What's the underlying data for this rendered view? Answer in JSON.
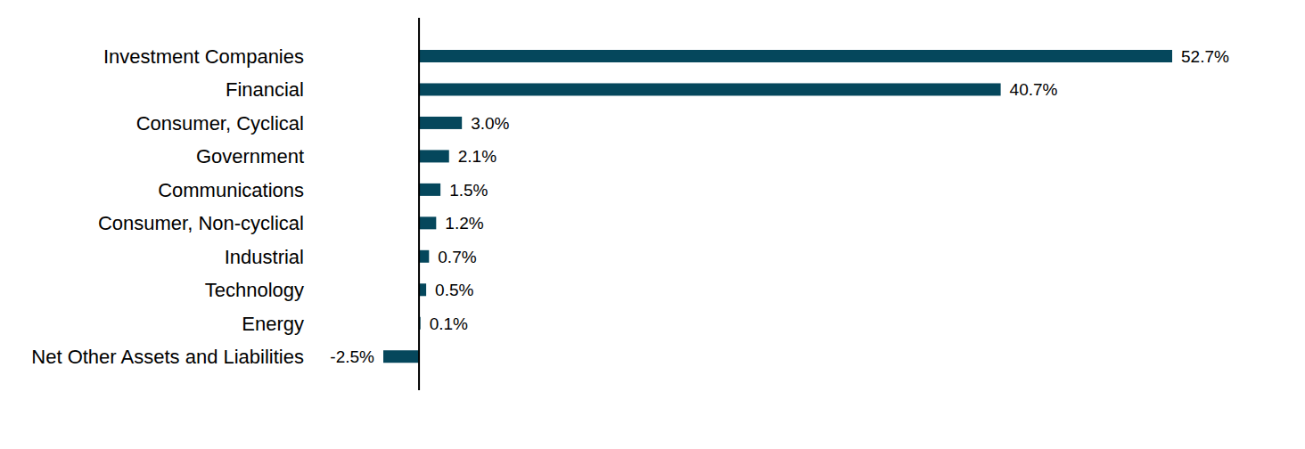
{
  "chart_data": {
    "type": "bar",
    "orientation": "horizontal",
    "categories": [
      "Investment Companies",
      "Financial",
      "Consumer, Cyclical",
      "Government",
      "Communications",
      "Consumer, Non-cyclical",
      "Industrial",
      "Technology",
      "Energy",
      "Net Other Assets and Liabilities"
    ],
    "values": [
      52.7,
      40.7,
      3.0,
      2.1,
      1.5,
      1.2,
      0.7,
      0.5,
      0.1,
      -2.5
    ],
    "value_labels": [
      "52.7%",
      "40.7%",
      "3.0%",
      "2.1%",
      "1.5%",
      "1.2%",
      "0.7%",
      "0.5%",
      "0.1%",
      "-2.5%"
    ],
    "color": "#05475c",
    "xlim": [
      -2.5,
      52.7
    ],
    "data_labels": true,
    "tick_labels": "y",
    "grid": false
  }
}
